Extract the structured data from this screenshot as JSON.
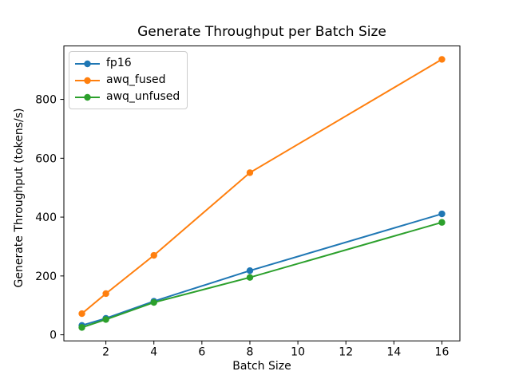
{
  "chart_data": {
    "type": "line",
    "title": "Generate Throughput per Batch Size",
    "xlabel": "Batch Size",
    "ylabel": "Generate Throughput (tokens/s)",
    "x": [
      1,
      2,
      4,
      8,
      16
    ],
    "series": [
      {
        "name": "fp16",
        "color": "#1f77b4",
        "values": [
          32,
          56,
          114,
          218,
          411
        ]
      },
      {
        "name": "awq_fused",
        "color": "#ff7f0e",
        "values": [
          72,
          140,
          270,
          551,
          936
        ]
      },
      {
        "name": "awq_unfused",
        "color": "#2ca02c",
        "values": [
          25,
          52,
          110,
          195,
          382
        ]
      }
    ],
    "xticks": [
      2,
      4,
      6,
      8,
      10,
      12,
      14,
      16
    ],
    "yticks": [
      0,
      200,
      400,
      600,
      800
    ],
    "xlim": [
      0.25,
      16.75
    ],
    "ylim": [
      -20.6,
      981.6
    ],
    "grid": false,
    "legend_position": "upper-left",
    "marker": "circle",
    "axis_color": "#000000",
    "legend_border_color": "#cccccc"
  }
}
